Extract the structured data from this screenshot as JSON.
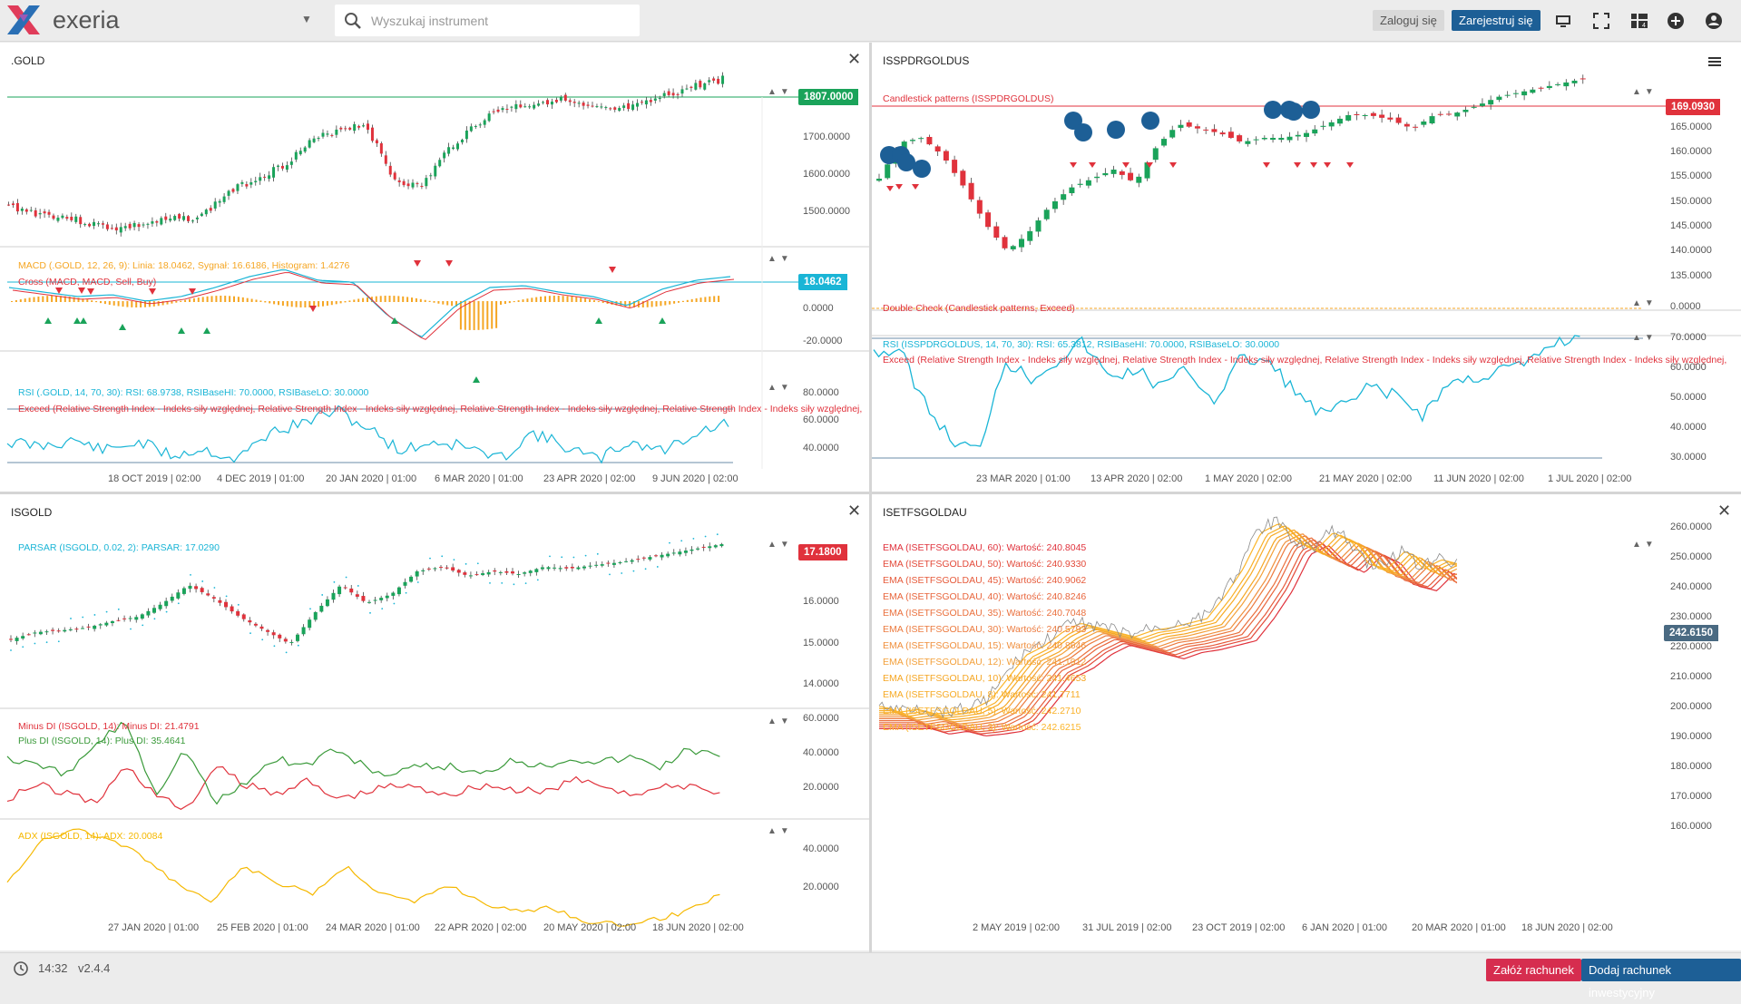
{
  "brand": "exeria",
  "search": {
    "placeholder": "Wyszukaj instrument"
  },
  "topbar": {
    "login": "Zaloguj się",
    "register": "Zarejestruj się"
  },
  "colors": {
    "accent": "#1d5f96",
    "green": "#1aa35a",
    "red": "#e0323c",
    "cyan": "#1ab5d6",
    "orange": "#f5a623"
  },
  "footer": {
    "time": "14:32",
    "version": "v2.4.4",
    "open_account": "Załóż rachunek",
    "add_account": "Dodaj rachunek inwestycyjny"
  },
  "panels": {
    "gold": {
      "title": ".GOLD",
      "price": "1807.0000",
      "yticks": [
        "1700.0000",
        "1600.0000",
        "1500.0000"
      ],
      "macd_label": "MACD (.GOLD, 12, 26, 9): Linia: 18.0462, Sygnał: 16.6186, Histogram: 1.4276",
      "cross_label": "Cross (MACD, MACD, Sell, Buy)",
      "macd_value": "18.0462",
      "macd_ticks": [
        "0.0000",
        "-20.0000"
      ],
      "rsi_label": "RSI (.GOLD, 14, 70, 30): RSI: 68.9738, RSIBaseHI: 70.0000, RSIBaseLO: 30.0000",
      "exceed_label": "Exceed (Relative Strength Index - Indeks siły względnej, Relative Strength Index - Indeks siły względnej, Relative Strength Index - Indeks siły względnej, Relative Strength Index - Indeks siły względnej,",
      "rsi_ticks": [
        "80.0000",
        "60.0000",
        "40.0000"
      ],
      "xticks": [
        "18 OCT 2019 | 02:00",
        "4 DEC 2019 | 01:00",
        "20 JAN 2020 | 01:00",
        "6 MAR 2020 | 01:00",
        "23 APR 2020 | 02:00",
        "9 JUN 2020 | 02:00"
      ]
    },
    "issp": {
      "title": "ISSPDRGOLDUS",
      "price": "169.0930",
      "candle_label": "Candlestick patterns (ISSPDRGOLDUS)",
      "yticks": [
        "165.0000",
        "160.0000",
        "155.0000",
        "150.0000",
        "145.0000",
        "140.0000",
        "135.0000"
      ],
      "double_label": "Double Check (Candlestick patterns, Exceed)",
      "double_tick": "0.0000",
      "rsi_label": "RSI (ISSPDRGOLDUS, 14, 70, 30): RSI: 65.3812, RSIBaseHI: 70.0000, RSIBaseLO: 30.0000",
      "exceed_label": "Exceed (Relative Strength Index - Indeks siły względnej, Relative Strength Index - Indeks siły względnej, Relative Strength Index - Indeks siły względnej, Relative Strength Index - Indeks siły względnej,",
      "rsi_ticks": [
        "70.0000",
        "60.0000",
        "50.0000",
        "40.0000",
        "30.0000"
      ],
      "xticks": [
        "23 MAR 2020 | 01:00",
        "13 APR 2020 | 02:00",
        "1 MAY 2020 | 02:00",
        "21 MAY 2020 | 02:00",
        "11 JUN 2020 | 02:00",
        "1 JUL 2020 | 02:00"
      ]
    },
    "isgold": {
      "title": "ISGOLD",
      "price": "17.1800",
      "parsar_label": "PARSAR (ISGOLD, 0.02, 2): PARSAR: 17.0290",
      "yticks": [
        "16.0000",
        "15.0000",
        "14.0000"
      ],
      "minus_label": "Minus DI (ISGOLD, 14): Minus DI: 21.4791",
      "plus_label": "Plus DI (ISGOLD, 14): Plus DI: 35.4641",
      "di_ticks": [
        "60.0000",
        "40.0000",
        "20.0000"
      ],
      "adx_label": "ADX (ISGOLD, 14): ADX: 20.0084",
      "adx_ticks": [
        "40.0000",
        "20.0000"
      ],
      "xticks": [
        "27 JAN 2020 | 01:00",
        "25 FEB 2020 | 01:00",
        "24 MAR 2020 | 01:00",
        "22 APR 2020 | 02:00",
        "20 MAY 2020 | 02:00",
        "18 JUN 2020 | 02:00"
      ]
    },
    "isetf": {
      "title": "ISETFSGOLDAU",
      "price": "242.6150",
      "ema_labels": [
        "EMA (ISETFSGOLDAU, 60): Wartość: 240.8045",
        "EMA (ISETFSGOLDAU, 50): Wartość: 240.9330",
        "EMA (ISETFSGOLDAU, 45): Wartość: 240.9062",
        "EMA (ISETFSGOLDAU, 40): Wartość: 240.8246",
        "EMA (ISETFSGOLDAU, 35): Wartość: 240.7048",
        "EMA (ISETFSGOLDAU, 30): Wartość: 240.5793",
        "EMA (ISETFSGOLDAU, 15): Wartość: 240.8646",
        "EMA (ISETFSGOLDAU, 12): Wartość: 241.1912",
        "EMA (ISETFSGOLDAU, 10): Wartość: 241.4653",
        "EMA (ISETFSGOLDAU, 8): Wartość: 241.7711",
        "EMA (ISETFSGOLDAU, 5): Wartość: 242.2710",
        "EMA (ISETFSGOLDAU, 3): Wartość: 242.6215"
      ],
      "yticks": [
        "260.0000",
        "250.0000",
        "240.0000",
        "230.0000",
        "220.0000",
        "210.0000",
        "200.0000",
        "190.0000",
        "180.0000",
        "170.0000",
        "160.0000"
      ],
      "xticks": [
        "2 MAY 2019 | 02:00",
        "31 JUL 2019 | 02:00",
        "23 OCT 2019 | 02:00",
        "6 JAN 2020 | 01:00",
        "20 MAR 2020 | 01:00",
        "18 JUN 2020 | 02:00"
      ]
    }
  }
}
